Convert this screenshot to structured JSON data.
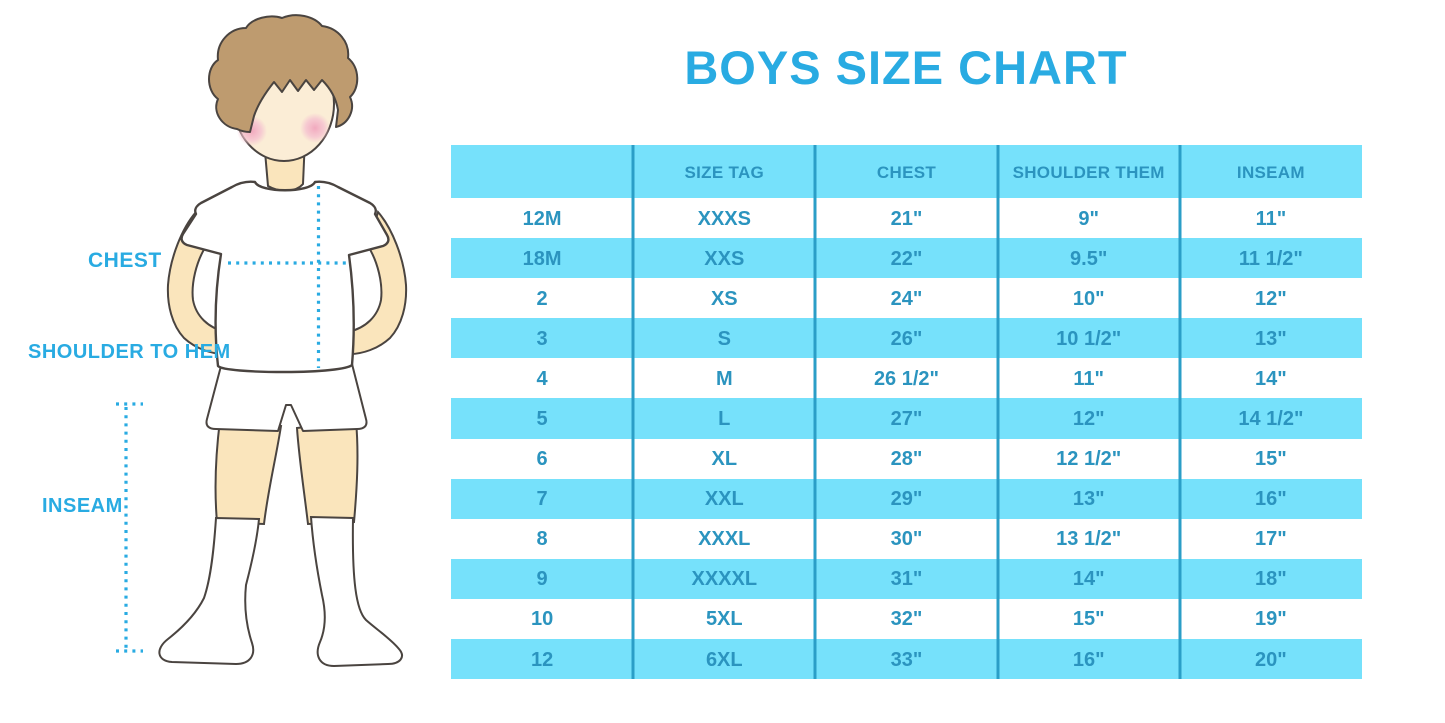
{
  "title": "BOYS SIZE CHART",
  "figure": {
    "labels": {
      "chest": "CHEST",
      "shoulder_to_hem": "SHOULDER TO HEM",
      "inseam": "INSEAM"
    }
  },
  "colors": {
    "accent_blue": "#29ABE2",
    "row_fill": "#76E1FB",
    "table_text": "#2B94BF",
    "divider_blue": "#2B9EC7"
  },
  "table": {
    "columns": [
      "",
      "SIZE TAG",
      "CHEST",
      "SHOULDER THEM",
      "INSEAM"
    ],
    "rows": [
      [
        "12M",
        "XXXS",
        "21\"",
        "9\"",
        "11\""
      ],
      [
        "18M",
        "XXS",
        "22\"",
        "9.5\"",
        "11 1/2\""
      ],
      [
        "2",
        "XS",
        "24\"",
        "10\"",
        "12\""
      ],
      [
        "3",
        "S",
        "26\"",
        "10 1/2\"",
        "13\""
      ],
      [
        "4",
        "M",
        "26 1/2\"",
        "11\"",
        "14\""
      ],
      [
        "5",
        "L",
        "27\"",
        "12\"",
        "14 1/2\""
      ],
      [
        "6",
        "XL",
        "28\"",
        "12 1/2\"",
        "15\""
      ],
      [
        "7",
        "XXL",
        "29\"",
        "13\"",
        "16\""
      ],
      [
        "8",
        "XXXL",
        "30\"",
        "13 1/2\"",
        "17\""
      ],
      [
        "9",
        "XXXXL",
        "31\"",
        "14\"",
        "18\""
      ],
      [
        "10",
        "5XL",
        "32\"",
        "15\"",
        "19\""
      ],
      [
        "12",
        "6XL",
        "33\"",
        "16\"",
        "20\""
      ]
    ]
  }
}
